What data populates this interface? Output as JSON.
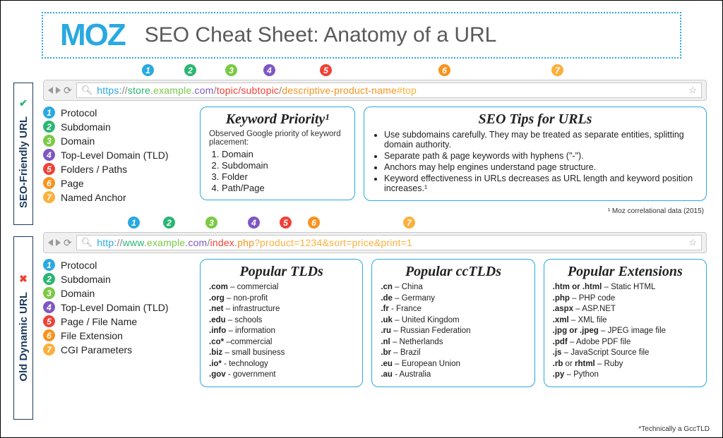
{
  "brand": "MOZ",
  "title": "SEO Cheat Sheet: Anatomy of a URL",
  "colors": {
    "c1": "#29a9e0",
    "c2": "#2bb673",
    "c3": "#7ac943",
    "c4": "#7e57c2",
    "c5": "#ef4136",
    "c6": "#f7931e",
    "c7": "#fbb03b"
  },
  "tabs": {
    "good": {
      "label": "SEO-Friendly URL",
      "icon": "✔",
      "icon_color": "#2bb673"
    },
    "bad": {
      "label": "Old Dynamic URL",
      "icon": "✖",
      "icon_color": "#ef4136"
    }
  },
  "good": {
    "url_parts": [
      {
        "text": "https",
        "color": "#29a9e0"
      },
      {
        "text": "://",
        "color": "#808285"
      },
      {
        "text": "store",
        "color": "#2bb673"
      },
      {
        "text": ".",
        "color": "#808285"
      },
      {
        "text": "example",
        "color": "#7ac943"
      },
      {
        "text": ".",
        "color": "#808285"
      },
      {
        "text": "com",
        "color": "#7e57c2"
      },
      {
        "text": "/",
        "color": "#808285"
      },
      {
        "text": "topic/subtopic",
        "color": "#ef4136"
      },
      {
        "text": "/",
        "color": "#808285"
      },
      {
        "text": "descriptive-product-name",
        "color": "#f7931e"
      },
      {
        "text": "#top",
        "color": "#fbb03b"
      }
    ],
    "marker_pos": [
      140,
      200,
      258,
      312,
      392,
      560,
      720
    ],
    "legend": [
      "Protocol",
      "Subdomain",
      "Domain",
      "Top-Level Domain (TLD)",
      "Folders / Paths",
      "Page",
      "Named Anchor"
    ],
    "card1": {
      "heading": "Keyword Priority¹",
      "sub": "Observed Google priority of keyword placement:",
      "items": [
        "Domain",
        "Subdomain",
        "Folder",
        "Path/Page"
      ]
    },
    "card2": {
      "heading": "SEO Tips for URLs",
      "tips": [
        "Use subdomains carefully. They may be treated as separate entities, splitting domain authority.",
        "Separate path & page keywords with hyphens (\"-\").",
        "Anchors may help engines understand page structure.",
        "Keyword effectiveness in URLs decreases as URL length and keyword position increases.¹"
      ]
    },
    "footnote": "¹ Moz correlational data (2015)"
  },
  "bad": {
    "url_parts": [
      {
        "text": "http",
        "color": "#29a9e0"
      },
      {
        "text": "://",
        "color": "#808285"
      },
      {
        "text": "www",
        "color": "#2bb673"
      },
      {
        "text": ".",
        "color": "#808285"
      },
      {
        "text": "example",
        "color": "#7ac943"
      },
      {
        "text": ".",
        "color": "#808285"
      },
      {
        "text": "com",
        "color": "#7e57c2"
      },
      {
        "text": "/",
        "color": "#808285"
      },
      {
        "text": "index",
        "color": "#ef4136"
      },
      {
        "text": ".",
        "color": "#808285"
      },
      {
        "text": "php",
        "color": "#f7931e"
      },
      {
        "text": "?product=1234&sort=price&print=1",
        "color": "#fbb03b"
      }
    ],
    "marker_pos": [
      120,
      170,
      230,
      290,
      335,
      375,
      510
    ],
    "legend": [
      "Protocol",
      "Subdomain",
      "Domain",
      "Top-Level Domain (TLD)",
      "Page / File Name",
      "File Extension",
      "CGI Parameters"
    ],
    "card_tld": {
      "heading": "Popular TLDs",
      "items": [
        {
          "b": ".com",
          "t": " – commercial"
        },
        {
          "b": ".org",
          "t": " – non-profit"
        },
        {
          "b": ".net",
          "t": " – infrastructure"
        },
        {
          "b": ".edu",
          "t": " – schools"
        },
        {
          "b": ".info",
          "t": " – information"
        },
        {
          "b": ".co*",
          "t": " –commercial"
        },
        {
          "b": ".biz",
          "t": " – small business"
        },
        {
          "b": ".io*",
          "t": " - technology"
        },
        {
          "b": ".gov",
          "t": " - government"
        }
      ]
    },
    "card_cctld": {
      "heading": "Popular ccTLDs",
      "items": [
        {
          "b": ".cn",
          "t": " – China"
        },
        {
          "b": ".de",
          "t": " – Germany"
        },
        {
          "b": ".fr",
          "t": " - France"
        },
        {
          "b": ".uk",
          "t": " – United Kingdom"
        },
        {
          "b": ".ru",
          "t": " – Russian Federation"
        },
        {
          "b": ".nl",
          "t": " – Netherlands"
        },
        {
          "b": ".br",
          "t": " – Brazil"
        },
        {
          "b": ".eu",
          "t": " – European Union"
        },
        {
          "b": ".au",
          "t": " - Australia"
        }
      ]
    },
    "card_ext": {
      "heading": "Popular Extensions",
      "items": [
        {
          "b": ".htm or .html",
          "t": " – Static HTML"
        },
        {
          "b": ".php",
          "t": " – PHP code"
        },
        {
          "b": ".aspx",
          "t": " – ASP.NET"
        },
        {
          "b": ".xml",
          "t": " – XML file"
        },
        {
          "b": ".jpg or .jpeg",
          "t": " – JPEG image file"
        },
        {
          "b": ".pdf",
          "t": " – Adobe PDF file"
        },
        {
          "b": ".js",
          "t": " – JavaScript Source file"
        },
        {
          "b": ".rb",
          "t": " or rhtml – Ruby",
          "special": true
        },
        {
          "b": ".py",
          "t": " – Python"
        }
      ]
    }
  },
  "footnote_br": "*Technically a GccTLD"
}
